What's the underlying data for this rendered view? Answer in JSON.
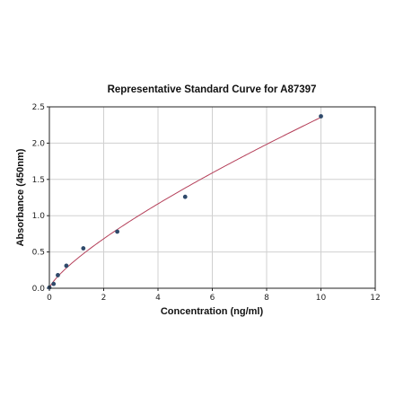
{
  "chart_data": {
    "type": "scatter",
    "title": "Representative Standard Curve for A87397",
    "xlabel": "Concentration (ng/ml)",
    "ylabel": "Absorbance (450nm)",
    "xlim": [
      0,
      12
    ],
    "ylim": [
      0,
      2.5
    ],
    "xticks": [
      "0",
      "2",
      "4",
      "6",
      "8",
      "10",
      "12"
    ],
    "yticks": [
      "0.0",
      "0.5",
      "1.0",
      "1.5",
      "2.0",
      "2.5"
    ],
    "grid": true,
    "colors": {
      "points": "#2f4a6b",
      "curve": "#b5405a",
      "grid": "#d0d0d0"
    },
    "series": [
      {
        "x": [
          0.0,
          0.156,
          0.3125,
          0.625,
          1.25,
          2.5,
          5.0,
          10.0
        ],
        "y": [
          0.01,
          0.06,
          0.18,
          0.31,
          0.55,
          0.78,
          1.26,
          2.37
        ]
      }
    ],
    "fit": {
      "type": "power",
      "a": 0.4,
      "b": 0.77
    }
  }
}
